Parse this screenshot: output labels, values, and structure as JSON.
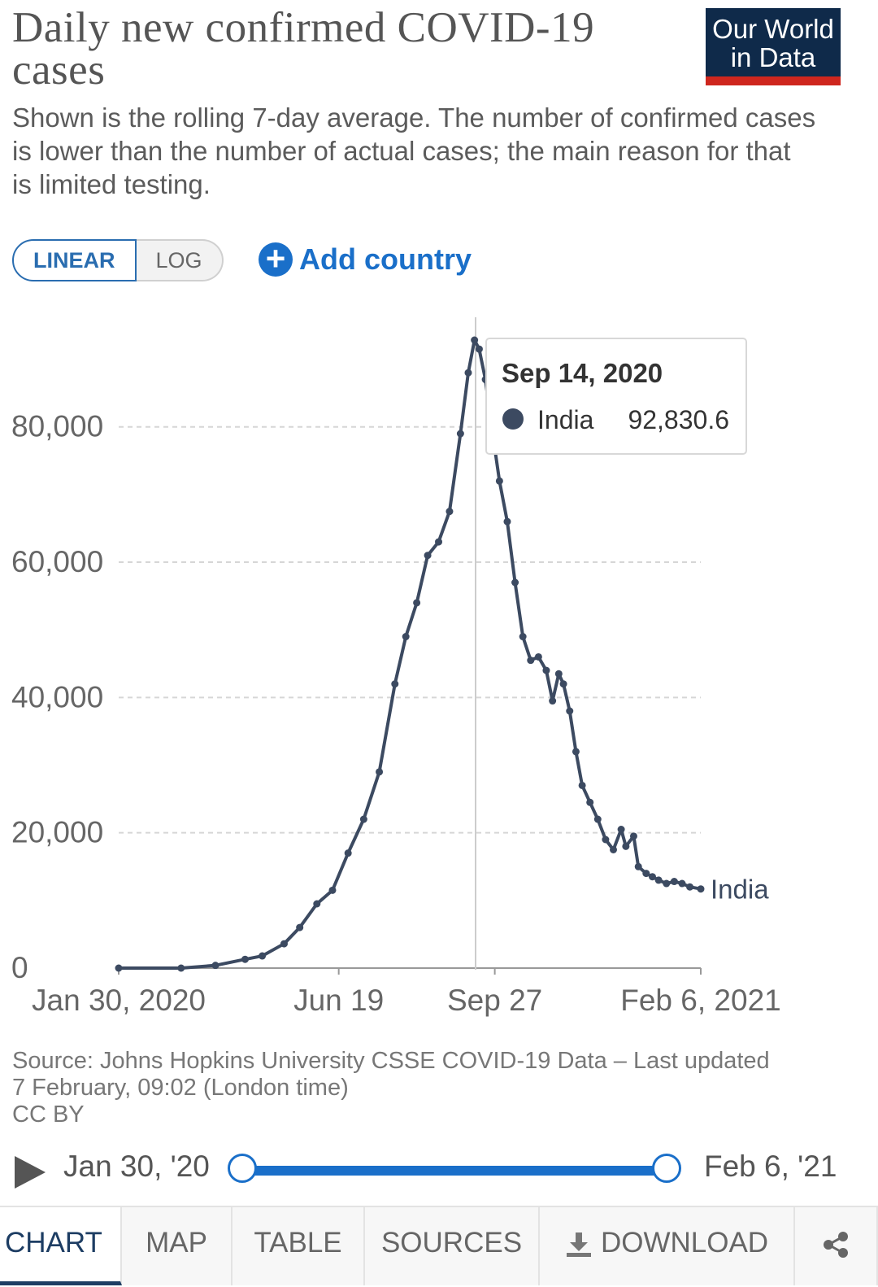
{
  "header": {
    "title": "Daily new confirmed COVID-19 cases",
    "subtitle": "Shown is the rolling 7-day average. The number of confirmed cases is lower than the number of actual cases; the main reason for that is limited testing.",
    "logo_line1": "Our World",
    "logo_line2": "in Data"
  },
  "controls": {
    "linear_label": "LINEAR",
    "log_label": "LOG",
    "add_country_label": "Add country"
  },
  "tooltip": {
    "date": "Sep 14, 2020",
    "series": "India",
    "value": "92,830.6"
  },
  "chart_data": {
    "type": "line",
    "title": "Daily new confirmed COVID-19 cases",
    "xlabel": "",
    "ylabel": "",
    "x_tick_labels": [
      "Jan 30, 2020",
      "Jun 19",
      "Sep 27",
      "Feb 6, 2021"
    ],
    "y_tick_labels": [
      "0",
      "20,000",
      "40,000",
      "60,000",
      "80,000"
    ],
    "ylim": [
      0,
      95000
    ],
    "grid": true,
    "series": [
      {
        "name": "India",
        "color": "#3c4a61",
        "x": [
          "2020-01-30",
          "2020-03-10",
          "2020-04-01",
          "2020-04-20",
          "2020-05-01",
          "2020-05-15",
          "2020-05-25",
          "2020-06-05",
          "2020-06-15",
          "2020-06-25",
          "2020-07-05",
          "2020-07-15",
          "2020-07-25",
          "2020-08-01",
          "2020-08-08",
          "2020-08-15",
          "2020-08-22",
          "2020-08-29",
          "2020-09-05",
          "2020-09-10",
          "2020-09-14",
          "2020-09-17",
          "2020-09-21",
          "2020-09-25",
          "2020-09-30",
          "2020-10-05",
          "2020-10-10",
          "2020-10-15",
          "2020-10-20",
          "2020-10-25",
          "2020-10-30",
          "2020-11-03",
          "2020-11-07",
          "2020-11-10",
          "2020-11-14",
          "2020-11-18",
          "2020-11-22",
          "2020-11-27",
          "2020-12-02",
          "2020-12-07",
          "2020-12-12",
          "2020-12-17",
          "2020-12-20",
          "2020-12-25",
          "2020-12-28",
          "2021-01-02",
          "2021-01-06",
          "2021-01-10",
          "2021-01-15",
          "2021-01-20",
          "2021-01-25",
          "2021-01-30",
          "2021-02-06"
        ],
        "values": [
          0,
          0,
          400,
          1300,
          1800,
          3600,
          6000,
          9500,
          11500,
          17000,
          22000,
          29000,
          42000,
          49000,
          54000,
          61000,
          63000,
          67500,
          79000,
          88000,
          92830.6,
          91500,
          87000,
          80000,
          72000,
          66000,
          57000,
          49000,
          45500,
          46000,
          44000,
          39500,
          43500,
          42000,
          38000,
          32000,
          27000,
          24500,
          22000,
          19000,
          17500,
          20500,
          18000,
          19500,
          15000,
          14000,
          13500,
          13000,
          12500,
          12800,
          12500,
          12000,
          11700
        ]
      }
    ]
  },
  "footer": {
    "source_line1": "Source: Johns Hopkins University CSSE COVID-19 Data – Last updated",
    "source_line2": "7 February, 09:02 (London time)",
    "license": "CC BY"
  },
  "timeline": {
    "start_label": "Jan 30, '20",
    "end_label": "Feb 6, '21",
    "range_start": "2020-01-30",
    "range_end": "2021-02-06"
  },
  "tabs": [
    {
      "label": "CHART",
      "active": true
    },
    {
      "label": "MAP"
    },
    {
      "label": "TABLE"
    },
    {
      "label": "SOURCES"
    },
    {
      "label": "DOWNLOAD",
      "icon": "download-icon"
    },
    {
      "label": "",
      "icon": "share-icon"
    }
  ],
  "colors": {
    "accent": "#1a6fc9",
    "logo_bg": "#0f2a4a",
    "logo_bar": "#ce261e",
    "series": "#3c4a61"
  }
}
